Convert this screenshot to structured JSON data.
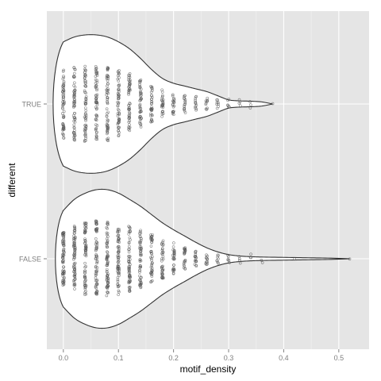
{
  "chart_data": {
    "type": "violin",
    "orientation": "horizontal",
    "title": "",
    "xlabel": "motif_density",
    "ylabel": "different",
    "xlim": [
      -0.03,
      0.555
    ],
    "x_ticks": [
      0.0,
      0.1,
      0.2,
      0.3,
      0.4,
      0.5
    ],
    "x_tick_labels": [
      "0.0",
      "0.1",
      "0.2",
      "0.3",
      "0.4",
      "0.5"
    ],
    "categories": [
      "TRUE",
      "FALSE"
    ],
    "grid": true,
    "legend": "none",
    "colors": {
      "panel": "#e5e5e5",
      "grid_major": "#ffffff",
      "grid_minor": "#f2f2f2",
      "violin_fill": "#ffffff",
      "violin_outline": "#333333",
      "points": "#555555"
    },
    "series": [
      {
        "category": "TRUE",
        "x_min": 0.0,
        "x_max": 0.38,
        "density_profile": [
          [
            0.0,
            0.9
          ],
          [
            0.02,
            0.97
          ],
          [
            0.04,
            1.0
          ],
          [
            0.06,
            1.0
          ],
          [
            0.08,
            0.97
          ],
          [
            0.1,
            0.9
          ],
          [
            0.12,
            0.8
          ],
          [
            0.14,
            0.66
          ],
          [
            0.16,
            0.5
          ],
          [
            0.18,
            0.37
          ],
          [
            0.2,
            0.3
          ],
          [
            0.22,
            0.26
          ],
          [
            0.24,
            0.22
          ],
          [
            0.26,
            0.18
          ],
          [
            0.28,
            0.12
          ],
          [
            0.3,
            0.06
          ],
          [
            0.32,
            0.045
          ],
          [
            0.34,
            0.04
          ],
          [
            0.36,
            0.03
          ],
          [
            0.38,
            0.0
          ]
        ],
        "point_columns": [
          [
            0.0,
            60
          ],
          [
            0.02,
            60
          ],
          [
            0.04,
            60
          ],
          [
            0.06,
            60
          ],
          [
            0.08,
            60
          ],
          [
            0.1,
            55
          ],
          [
            0.12,
            50
          ],
          [
            0.14,
            45
          ],
          [
            0.16,
            35
          ],
          [
            0.18,
            25
          ],
          [
            0.2,
            20
          ],
          [
            0.22,
            16
          ],
          [
            0.24,
            12
          ],
          [
            0.26,
            10
          ],
          [
            0.28,
            8
          ],
          [
            0.3,
            6
          ],
          [
            0.32,
            4
          ],
          [
            0.34,
            3
          ],
          [
            0.38,
            1
          ]
        ]
      },
      {
        "category": "FALSE",
        "x_min": 0.0,
        "x_max": 0.52,
        "density_profile": [
          [
            0.0,
            0.7
          ],
          [
            0.02,
            0.86
          ],
          [
            0.04,
            0.95
          ],
          [
            0.06,
            1.0
          ],
          [
            0.08,
            1.0
          ],
          [
            0.1,
            0.95
          ],
          [
            0.12,
            0.86
          ],
          [
            0.14,
            0.76
          ],
          [
            0.16,
            0.64
          ],
          [
            0.18,
            0.52
          ],
          [
            0.2,
            0.42
          ],
          [
            0.22,
            0.33
          ],
          [
            0.24,
            0.24
          ],
          [
            0.26,
            0.16
          ],
          [
            0.28,
            0.1
          ],
          [
            0.3,
            0.06
          ],
          [
            0.32,
            0.04
          ],
          [
            0.34,
            0.03
          ],
          [
            0.36,
            0.025
          ],
          [
            0.4,
            0.02
          ],
          [
            0.44,
            0.015
          ],
          [
            0.48,
            0.01
          ],
          [
            0.52,
            0.0
          ]
        ],
        "point_columns": [
          [
            0.0,
            70
          ],
          [
            0.02,
            70
          ],
          [
            0.04,
            70
          ],
          [
            0.06,
            70
          ],
          [
            0.08,
            70
          ],
          [
            0.1,
            65
          ],
          [
            0.12,
            60
          ],
          [
            0.14,
            55
          ],
          [
            0.16,
            45
          ],
          [
            0.18,
            38
          ],
          [
            0.2,
            30
          ],
          [
            0.22,
            24
          ],
          [
            0.24,
            18
          ],
          [
            0.26,
            12
          ],
          [
            0.28,
            8
          ],
          [
            0.3,
            6
          ],
          [
            0.32,
            4
          ],
          [
            0.34,
            3
          ],
          [
            0.36,
            2
          ],
          [
            0.42,
            1
          ],
          [
            0.52,
            1
          ]
        ]
      }
    ]
  }
}
